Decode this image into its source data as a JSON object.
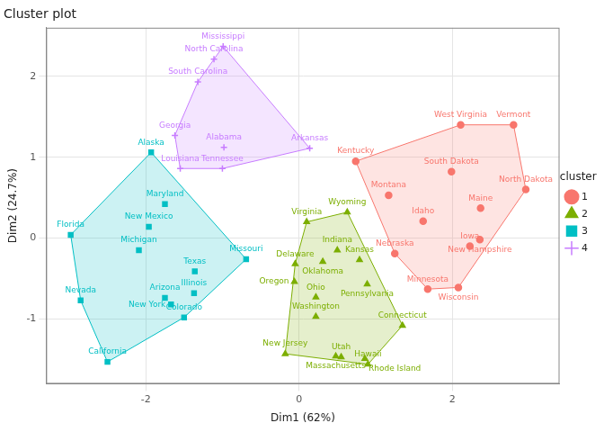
{
  "chart_data": {
    "type": "scatter",
    "title": "Cluster plot",
    "x_label": "Dim1 (62%)",
    "y_label": "Dim2 (24.7%)",
    "legend_title": "cluster",
    "legend": "right",
    "grid": true,
    "xlim": [
      -3.3,
      3.4
    ],
    "xticks": [
      -2,
      0,
      2
    ],
    "ylim": [
      -1.8,
      2.6
    ],
    "yticks": [
      -1,
      0,
      1,
      2
    ],
    "series": [
      {
        "name": "1",
        "color": "#F8766D",
        "marker": "circle",
        "point_labels": [
          "Idaho",
          "Iowa",
          "Kentucky",
          "Maine",
          "Minnesota",
          "Montana",
          "Nebraska",
          "New Hampshire",
          "North Dakota",
          "South Dakota",
          "Vermont",
          "West Virginia",
          "Wisconsin"
        ],
        "x": [
          1.62,
          2.23,
          0.74,
          2.37,
          1.68,
          1.17,
          1.25,
          2.36,
          2.96,
          1.99,
          2.8,
          2.11,
          2.08
        ],
        "values": [
          0.21,
          -0.1,
          0.95,
          0.37,
          -0.63,
          0.53,
          -0.19,
          -0.02,
          0.6,
          0.82,
          1.4,
          1.4,
          -0.61
        ]
      },
      {
        "name": "2",
        "color": "#7CAE00",
        "marker": "triangle",
        "point_labels": [
          "Connecticut",
          "Delaware",
          "Hawaii",
          "Indiana",
          "Kansas",
          "Massachusetts",
          "New Jersey",
          "Ohio",
          "Oklahoma",
          "Oregon",
          "Pennsylvania",
          "Rhode Island",
          "Utah",
          "Virginia",
          "Washington",
          "Wyoming"
        ],
        "x": [
          1.35,
          -0.05,
          0.9,
          0.5,
          0.79,
          0.48,
          -0.18,
          0.22,
          0.31,
          -0.06,
          0.89,
          0.86,
          0.55,
          0.1,
          0.22,
          0.63
        ],
        "values": [
          -1.08,
          -0.32,
          -1.56,
          -0.15,
          -0.27,
          -1.46,
          -1.43,
          -0.73,
          -0.29,
          -0.54,
          -0.57,
          -1.49,
          -1.47,
          0.2,
          -0.97,
          0.32
        ]
      },
      {
        "name": "3",
        "color": "#00BFC4",
        "marker": "rect",
        "point_labels": [
          "Alaska",
          "Arizona",
          "California",
          "Colorado",
          "Florida",
          "Illinois",
          "Maryland",
          "Michigan",
          "Missouri",
          "Nevada",
          "New Mexico",
          "New York",
          "Texas"
        ],
        "x": [
          -1.93,
          -1.75,
          -2.5,
          -1.5,
          -2.98,
          -1.37,
          -1.75,
          -2.09,
          -0.69,
          -2.85,
          -1.96,
          -1.67,
          -1.36
        ],
        "values": [
          1.06,
          -0.74,
          -1.53,
          -0.98,
          0.04,
          -0.68,
          0.42,
          -0.15,
          -0.26,
          -0.77,
          0.14,
          -0.82,
          -0.41
        ]
      },
      {
        "name": "4",
        "color": "#C77CFF",
        "marker": "cross",
        "point_labels": [
          "Alabama",
          "Arkansas",
          "Georgia",
          "Louisiana",
          "Mississippi",
          "North Carolina",
          "South Carolina",
          "Tennessee"
        ],
        "x": [
          -0.98,
          0.14,
          -1.62,
          -1.55,
          -0.99,
          -1.11,
          -1.32,
          -1.0
        ],
        "values": [
          1.12,
          1.11,
          1.27,
          0.86,
          2.37,
          2.21,
          1.93,
          0.86
        ]
      }
    ]
  }
}
